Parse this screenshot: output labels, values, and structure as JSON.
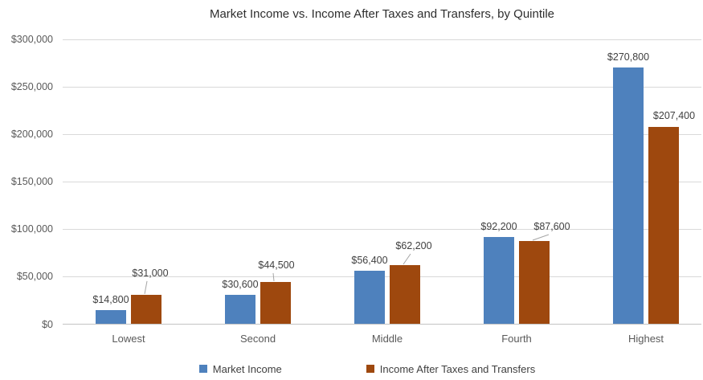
{
  "chart_data": {
    "type": "bar",
    "title": "Market Income vs. Income After Taxes and Transfers, by Quintile",
    "xlabel": "",
    "ylabel": "",
    "categories": [
      "Lowest",
      "Second",
      "Middle",
      "Fourth",
      "Highest"
    ],
    "series": [
      {
        "name": "Market Income",
        "color": "#4E81BD",
        "values": [
          14800,
          30600,
          56400,
          92200,
          270800
        ],
        "labels": [
          "$14,800",
          "$30,600",
          "$56,400",
          "$92,200",
          "$270,800"
        ]
      },
      {
        "name": "Income After Taxes and Transfers",
        "color": "#9E480E",
        "values": [
          31000,
          44500,
          62200,
          87600,
          207400
        ],
        "labels": [
          "$31,000",
          "$44,500",
          "$62,200",
          "$87,600",
          "$207,400"
        ]
      }
    ],
    "y_axis": {
      "min": 0,
      "max": 300000,
      "ticks": [
        {
          "value": 0,
          "label": "$0"
        },
        {
          "value": 50000,
          "label": "$50,000"
        },
        {
          "value": 100000,
          "label": "$100,000"
        },
        {
          "value": 150000,
          "label": "$150,000"
        },
        {
          "value": 200000,
          "label": "$200,000"
        },
        {
          "value": 250000,
          "label": "$250,000"
        },
        {
          "value": 300000,
          "label": "$300,000"
        }
      ]
    },
    "grid": true,
    "legend_position": "bottom",
    "colors": {
      "gridline": "#D9D9D9",
      "axis_line": "#C3C3C3",
      "leader_line": "#A6A6A6",
      "title_text": "#2E2E2E",
      "axis_text": "#595959",
      "label_text": "#3F3F3F",
      "background": "#FFFFFF"
    }
  }
}
